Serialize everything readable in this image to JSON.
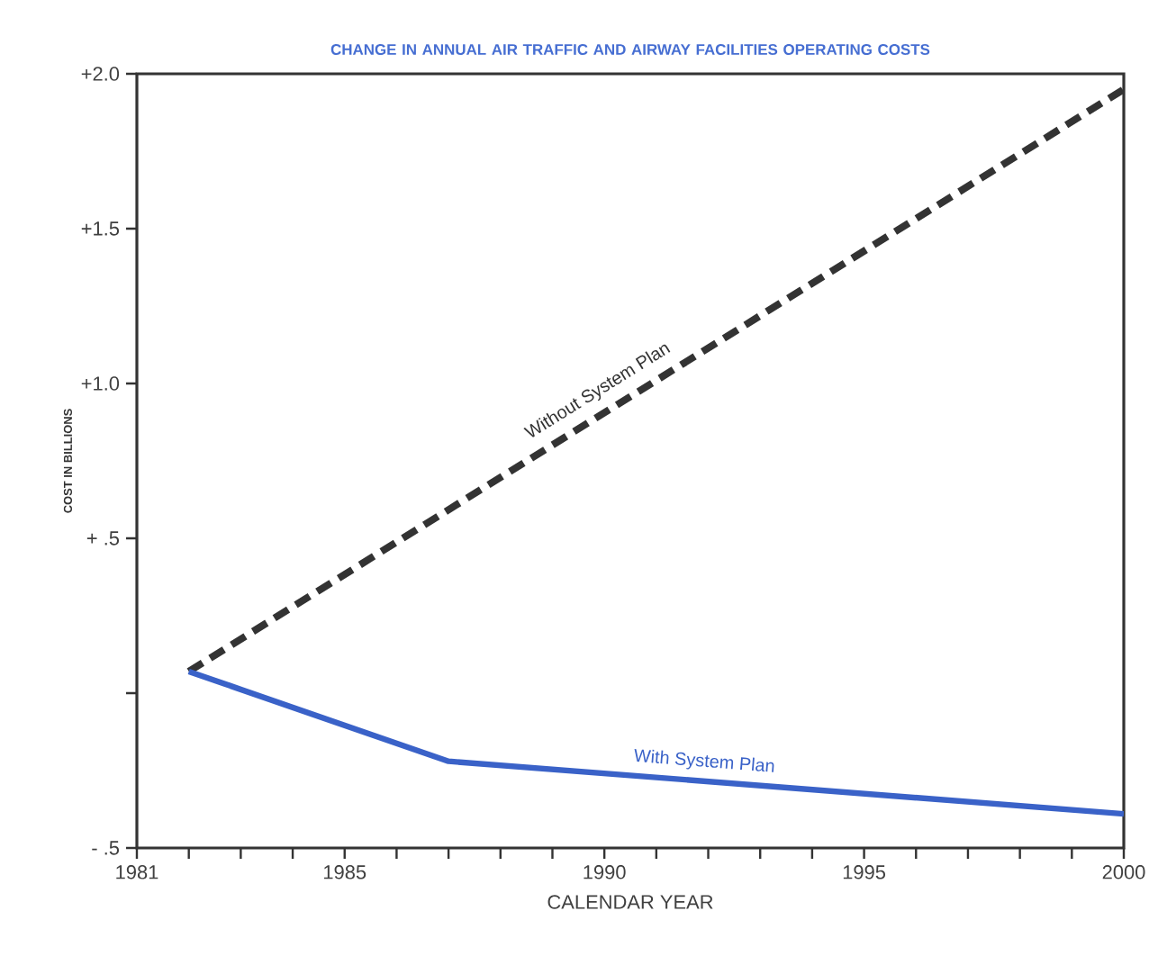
{
  "chart_data": {
    "type": "line",
    "title": "CHANGE IN ANNUAL AIR TRAFFIC AND AIRWAY FACILITIES OPERATING COSTS",
    "xlabel": "CALENDAR YEAR",
    "ylabel": "COST IN BILLIONS",
    "series": [
      {
        "name": "Without System Plan",
        "color": "#333333",
        "line_style": "dashed",
        "x": [
          1982,
          2000
        ],
        "values": [
          0.07,
          1.95
        ]
      },
      {
        "name": "With System Plan",
        "color": "#3a62c8",
        "line_style": "solid",
        "x": [
          1982,
          1987,
          2000
        ],
        "values": [
          0.07,
          -0.22,
          -0.39
        ]
      }
    ],
    "xlim": [
      1981,
      2000
    ],
    "xticks": [
      1981,
      {
        "value": 1982,
        "label": null
      },
      {
        "value": 1983,
        "label": null
      },
      {
        "value": 1984,
        "label": null
      },
      1985,
      {
        "value": 1986,
        "label": null
      },
      {
        "value": 1987,
        "label": null
      },
      {
        "value": 1988,
        "label": null
      },
      {
        "value": 1989,
        "label": null
      },
      1990,
      {
        "value": 1991,
        "label": null
      },
      {
        "value": 1992,
        "label": null
      },
      {
        "value": 1993,
        "label": null
      },
      {
        "value": 1994,
        "label": null
      },
      1995,
      {
        "value": 1996,
        "label": null
      },
      {
        "value": 1997,
        "label": null
      },
      {
        "value": 1998,
        "label": null
      },
      {
        "value": 1999,
        "label": null
      },
      2000
    ],
    "ylim": [
      -0.5,
      2.0
    ],
    "yticks": [
      {
        "value": -0.5,
        "label": "- .5"
      },
      {
        "value": 0,
        "label": null
      },
      {
        "value": 0.5,
        "label": "+ .5"
      },
      {
        "value": 1.0,
        "label": "+1.0"
      },
      {
        "value": 1.5,
        "label": "+1.5"
      },
      {
        "value": 2.0,
        "label": "+2.0"
      }
    ],
    "grid": false,
    "legend": false,
    "marker": "none"
  }
}
